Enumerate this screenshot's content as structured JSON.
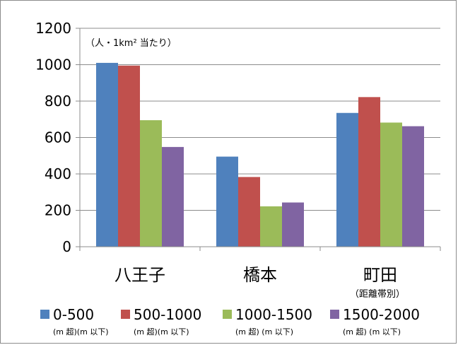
{
  "chart_data": {
    "type": "bar",
    "categories": [
      "八王子",
      "橋本",
      "町田"
    ],
    "series": [
      {
        "name": "0-500",
        "sub": "(m 超)(m 以下)",
        "color": "#4f81bd",
        "values": [
          1010,
          495,
          735
        ]
      },
      {
        "name": "500-1000",
        "sub": "(m 超)(m 以下)",
        "color": "#c0504d",
        "values": [
          995,
          383,
          822
        ]
      },
      {
        "name": "1000-1500",
        "sub": "(m 超) (m 以下)",
        "color": "#9bbb59",
        "values": [
          695,
          222,
          682
        ]
      },
      {
        "name": "1500-2000",
        "sub": "(m 超) (m 以下)",
        "color": "#8064a2",
        "values": [
          548,
          243,
          662
        ]
      }
    ],
    "ylim": [
      0,
      1200
    ],
    "yticks": [
      0,
      200,
      400,
      600,
      800,
      1000,
      1200
    ],
    "unit_note": "（人・1km² 当たり）",
    "category_note": "（距離帯別）",
    "grid": true,
    "legend_position": "bottom"
  }
}
